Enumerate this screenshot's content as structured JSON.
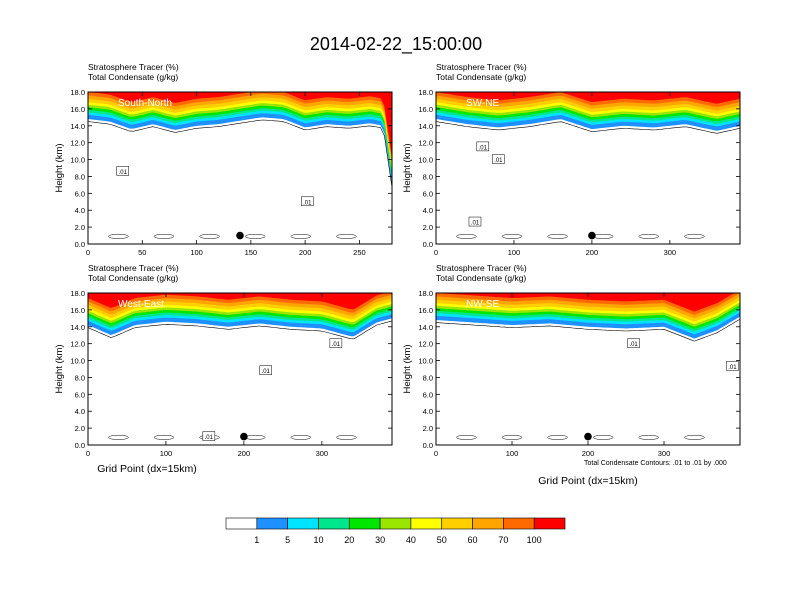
{
  "figure": {
    "title": "2014-02-22_15:00:00",
    "panel_header_line1": "Stratosphere Tracer   (%)",
    "panel_header_line2": "Total Condensate   (g/kg)",
    "contour_note": "Total Condensate Contours: .01 to .01 by .000",
    "xlabel": "Grid Point (dx=15km)",
    "ylabel": "Height (km)"
  },
  "colorbar": {
    "levels": [
      "1",
      "5",
      "10",
      "20",
      "30",
      "40",
      "50",
      "60",
      "70",
      "100"
    ],
    "colors": [
      "#ffffff",
      "#1e90ff",
      "#00e5ff",
      "#00e68c",
      "#00e600",
      "#9ae600",
      "#ffff00",
      "#ffd000",
      "#ffa500",
      "#ff6a00",
      "#ff0000"
    ]
  },
  "chart_data": [
    {
      "type": "heatmap",
      "panel": "South-North",
      "title": "South-North",
      "xlim": [
        0,
        280
      ],
      "ylim": [
        0,
        18
      ],
      "xticks": [
        "0",
        "50",
        "100",
        "150",
        "200",
        "250"
      ],
      "xtick_values": [
        0,
        50,
        100,
        150,
        200,
        250
      ],
      "yticks": [
        "0.0",
        "2.0",
        "4.0",
        "6.0",
        "8.0",
        "10.0",
        "12.0",
        "14.0",
        "16.0",
        "18.0"
      ],
      "tropopause_km": [
        [
          0,
          14.8
        ],
        [
          20,
          14.5
        ],
        [
          40,
          13.6
        ],
        [
          60,
          14.2
        ],
        [
          80,
          13.5
        ],
        [
          100,
          14.0
        ],
        [
          120,
          14.2
        ],
        [
          140,
          14.6
        ],
        [
          160,
          15.0
        ],
        [
          180,
          14.8
        ],
        [
          200,
          13.8
        ],
        [
          220,
          14.2
        ],
        [
          240,
          14.0
        ],
        [
          260,
          14.3
        ],
        [
          272,
          14.0
        ],
        [
          280,
          7.0
        ]
      ],
      "marker": [
        140,
        1.0
      ],
      "contour_labels": [
        {
          "text": ".01",
          "x": 32,
          "y": 8.6
        },
        {
          "text": ".01",
          "x": 202,
          "y": 5.0
        }
      ]
    },
    {
      "type": "heatmap",
      "panel": "SW-NE",
      "title": "SW-NE",
      "xlim": [
        0,
        390
      ],
      "ylim": [
        0,
        18
      ],
      "xticks": [
        "0",
        "100",
        "200",
        "300"
      ],
      "xtick_values": [
        0,
        100,
        200,
        300
      ],
      "yticks": [
        "0.0",
        "2.0",
        "4.0",
        "6.0",
        "8.0",
        "10.0",
        "12.0",
        "14.0",
        "16.0",
        "18.0"
      ],
      "tropopause_km": [
        [
          0,
          14.8
        ],
        [
          40,
          14.2
        ],
        [
          80,
          13.8
        ],
        [
          120,
          14.2
        ],
        [
          160,
          14.8
        ],
        [
          200,
          13.6
        ],
        [
          240,
          14.0
        ],
        [
          280,
          13.8
        ],
        [
          320,
          14.2
        ],
        [
          360,
          13.4
        ],
        [
          390,
          14.0
        ]
      ],
      "marker": [
        200,
        1.0
      ],
      "contour_labels": [
        {
          "text": ".01",
          "x": 60,
          "y": 11.5
        },
        {
          "text": ".01",
          "x": 80,
          "y": 10.0
        },
        {
          "text": ".01",
          "x": 50,
          "y": 2.6
        }
      ]
    },
    {
      "type": "heatmap",
      "panel": "West-East",
      "title": "West-East",
      "xlim": [
        0,
        390
      ],
      "ylim": [
        0,
        18
      ],
      "xticks": [
        "0",
        "100",
        "200",
        "300"
      ],
      "xtick_values": [
        0,
        100,
        200,
        300
      ],
      "yticks": [
        "0.0",
        "2.0",
        "4.0",
        "6.0",
        "8.0",
        "10.0",
        "12.0",
        "14.0",
        "16.0",
        "18.0"
      ],
      "tropopause_km": [
        [
          0,
          14.2
        ],
        [
          30,
          13.0
        ],
        [
          60,
          14.2
        ],
        [
          100,
          14.6
        ],
        [
          140,
          14.4
        ],
        [
          180,
          14.0
        ],
        [
          220,
          14.4
        ],
        [
          260,
          14.0
        ],
        [
          300,
          13.8
        ],
        [
          340,
          12.8
        ],
        [
          370,
          14.5
        ],
        [
          390,
          15.0
        ]
      ],
      "marker": [
        200,
        1.0
      ],
      "contour_labels": [
        {
          "text": ".01",
          "x": 228,
          "y": 8.8
        },
        {
          "text": ".01",
          "x": 318,
          "y": 12.0
        },
        {
          "text": ".01",
          "x": 155,
          "y": 1.0
        }
      ]
    },
    {
      "type": "heatmap",
      "panel": "NW-SE",
      "title": "NW-SE",
      "xlim": [
        0,
        400
      ],
      "ylim": [
        0,
        18
      ],
      "xticks": [
        "0",
        "100",
        "200",
        "300"
      ],
      "xtick_values": [
        0,
        100,
        200,
        300
      ],
      "yticks": [
        "0.0",
        "2.0",
        "4.0",
        "6.0",
        "8.0",
        "10.0",
        "12.0",
        "14.0",
        "16.0",
        "18.0"
      ],
      "tropopause_km": [
        [
          0,
          14.8
        ],
        [
          50,
          14.5
        ],
        [
          100,
          14.2
        ],
        [
          150,
          14.4
        ],
        [
          200,
          14.0
        ],
        [
          250,
          13.8
        ],
        [
          300,
          14.0
        ],
        [
          340,
          12.6
        ],
        [
          370,
          13.6
        ],
        [
          400,
          15.2
        ]
      ],
      "marker": [
        200,
        1.0
      ],
      "contour_labels": [
        {
          "text": ".01",
          "x": 260,
          "y": 12.0
        },
        {
          "text": ".01",
          "x": 390,
          "y": 9.3
        }
      ]
    }
  ]
}
